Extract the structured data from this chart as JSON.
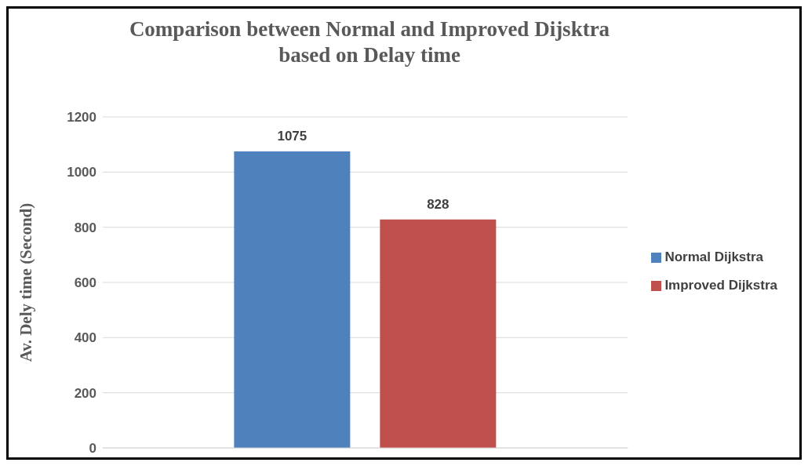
{
  "chart_data": {
    "type": "bar",
    "title": "Comparison between Normal and Improved Dijsktra based on Delay time",
    "ylabel": "Av. Dely time (Second)",
    "categories": [
      null
    ],
    "series": [
      {
        "name": "Normal Dijkstra",
        "color": "#4f81bd",
        "values": [
          1075
        ]
      },
      {
        "name": "Improved Dijkstra",
        "color": "#c0504d",
        "values": [
          828
        ]
      }
    ],
    "ylim": [
      0,
      1200
    ],
    "yticks": [
      0,
      200,
      400,
      600,
      800,
      1000,
      1200
    ],
    "grid": "y",
    "legend": "right",
    "data_labels": true
  }
}
